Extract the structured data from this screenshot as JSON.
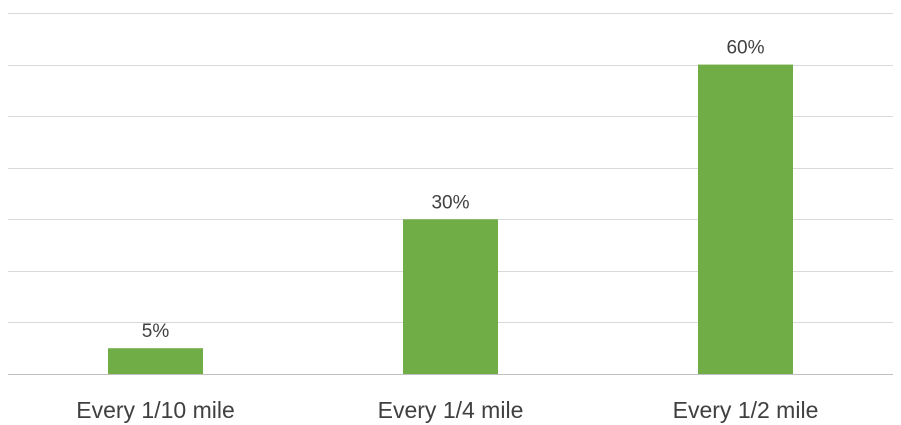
{
  "chart_data": {
    "type": "bar",
    "categories": [
      "Every 1/10 mile",
      "Every 1/4 mile",
      "Every 1/2 mile"
    ],
    "values": [
      5,
      30,
      60
    ],
    "data_labels": [
      "5%",
      "30%",
      "60%"
    ],
    "value_unit": "%",
    "ylim": [
      0,
      70
    ],
    "y_tick_step": 10,
    "y_tick_labels_shown": false,
    "grid": true,
    "legend": "none",
    "bar_color": "#70ad47",
    "title": "",
    "xlabel": "",
    "ylabel": ""
  }
}
